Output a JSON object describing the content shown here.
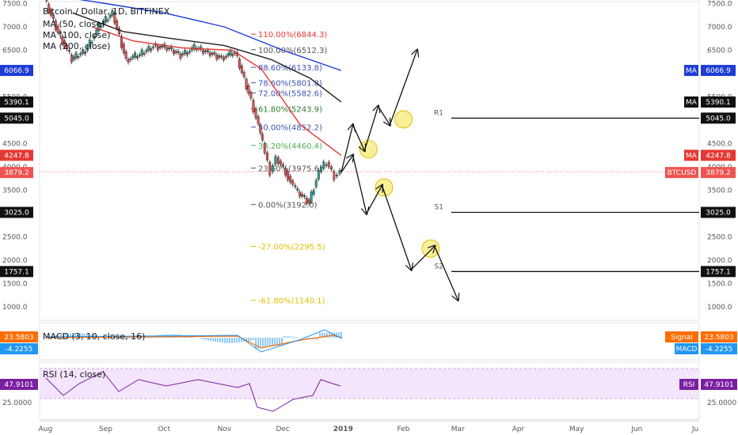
{
  "header": {
    "symbol_title": "Bitcoin / Dollar, 1D, BITFINEX",
    "ma_labels": [
      "MA (50, close)",
      "MA (100, close)",
      "MA (200, close)"
    ]
  },
  "colors": {
    "candle_up": "#26a69a",
    "candle_down": "#ef5350",
    "ma50": "#e53935",
    "ma100": "#212121",
    "ma200": "#1e3cd6",
    "macd_line": "#2196f3",
    "signal_line": "#ff6d00",
    "rsi_line": "#7b1fa2",
    "rsi_band": "#f3e5fb",
    "highlight": "#f7ef9a"
  },
  "chart_data": [
    {
      "type": "candlestick",
      "title": "Bitcoin / Dollar, 1D, BITFINEX",
      "y_ticks": [
        "7500.0",
        "7000.0",
        "6500.0",
        "5500.0",
        "4500.0",
        "4000.0",
        "3500.0",
        "2500.0",
        "2000.0",
        "1500.0",
        "1000.0"
      ],
      "x_ticks": [
        "Aug",
        "Sep",
        "Oct",
        "Nov",
        "Dec",
        "2019",
        "Feb",
        "Mar",
        "Apr",
        "May",
        "Jun",
        "Ju"
      ],
      "close_path": [
        [
          "2018-08-01",
          7600
        ],
        [
          "2018-08-08",
          6900
        ],
        [
          "2018-08-15",
          6300
        ],
        [
          "2018-08-22",
          6500
        ],
        [
          "2018-08-29",
          7000
        ],
        [
          "2018-09-05",
          7300
        ],
        [
          "2018-09-12",
          6300
        ],
        [
          "2018-09-19",
          6400
        ],
        [
          "2018-09-26",
          6600
        ],
        [
          "2018-10-03",
          6550
        ],
        [
          "2018-10-10",
          6400
        ],
        [
          "2018-10-17",
          6550
        ],
        [
          "2018-10-24",
          6450
        ],
        [
          "2018-10-31",
          6350
        ],
        [
          "2018-11-07",
          6450
        ],
        [
          "2018-11-14",
          5600
        ],
        [
          "2018-11-19",
          4900
        ],
        [
          "2018-11-21",
          4500
        ],
        [
          "2018-11-25",
          3900
        ],
        [
          "2018-11-28",
          4200
        ],
        [
          "2018-12-03",
          3900
        ],
        [
          "2018-12-08",
          3500
        ],
        [
          "2018-12-15",
          3250
        ],
        [
          "2018-12-20",
          3900
        ],
        [
          "2018-12-24",
          4100
        ],
        [
          "2018-12-28",
          3800
        ],
        [
          "2018-12-31",
          3900
        ]
      ],
      "moving_averages": [
        {
          "name": "MA (50, close)",
          "last": "4247.8",
          "points": [
            [
              "2018-08-25",
              7000
            ],
            [
              "2018-09-15",
              6700
            ],
            [
              "2018-10-10",
              6550
            ],
            [
              "2018-11-05",
              6500
            ],
            [
              "2018-11-20",
              6100
            ],
            [
              "2018-12-10",
              4900
            ],
            [
              "2018-12-31",
              4247.8
            ]
          ]
        },
        {
          "name": "MA (100, close)",
          "last": "5390.1",
          "points": [
            [
              "2018-08-15",
              7300
            ],
            [
              "2018-09-10",
              6900
            ],
            [
              "2018-10-05",
              6750
            ],
            [
              "2018-11-01",
              6600
            ],
            [
              "2018-11-25",
              6300
            ],
            [
              "2018-12-15",
              5900
            ],
            [
              "2018-12-31",
              5390.1
            ]
          ]
        },
        {
          "name": "MA (200, close)",
          "last": "6066.9",
          "points": [
            [
              "2018-08-01",
              7700
            ],
            [
              "2018-09-01",
              7500
            ],
            [
              "2018-10-01",
              7300
            ],
            [
              "2018-11-01",
              7000
            ],
            [
              "2018-12-01",
              6500
            ],
            [
              "2018-12-31",
              6066.9
            ]
          ]
        }
      ],
      "fib_levels": [
        {
          "label": "110.00%(6844.3)",
          "value": 6844.3,
          "color": "#e53935"
        },
        {
          "label": "100.00%(6512.3)",
          "value": 6512.3,
          "color": "#555555"
        },
        {
          "label": "88.60%(6133.8)",
          "value": 6133.8,
          "color": "#3f51b5"
        },
        {
          "label": "78.60%(5801.8)",
          "value": 5801.8,
          "color": "#3f51b5"
        },
        {
          "label": "72.00%(5582.6)",
          "value": 5582.6,
          "color": "#3f51b5"
        },
        {
          "label": "61.80%(5243.9)",
          "value": 5243.9,
          "color": "#2e7d32"
        },
        {
          "label": "50.00%(4852.2)",
          "value": 4852.2,
          "color": "#3f51b5"
        },
        {
          "label": "38.20%(4460.4)",
          "value": 4460.4,
          "color": "#4caf50"
        },
        {
          "label": "23.60%(3975.6)",
          "value": 3975.6,
          "color": "#555555"
        },
        {
          "label": "0.00%(3192.0)",
          "value": 3192.0,
          "color": "#555555"
        },
        {
          "label": "-27.00%(2295.5)",
          "value": 2295.5,
          "color": "#e0c000"
        },
        {
          "label": "-61.80%(1140.1)",
          "value": 1140.1,
          "color": "#e0c000"
        }
      ],
      "levels": [
        {
          "label": "R1",
          "value": 5045.0
        },
        {
          "label": "S1",
          "value": 3025.0
        },
        {
          "label": "S2",
          "value": 1757.1
        }
      ],
      "price_tags": [
        {
          "text": "6066.9",
          "value": 6066.9,
          "color": "#1e3cd6",
          "name": "MA"
        },
        {
          "text": "5390.1",
          "value": 5390.1,
          "color": "#111111",
          "name": "MA"
        },
        {
          "text": "5045.0",
          "value": 5045.0,
          "color": "#111111",
          "name": ""
        },
        {
          "text": "4247.8",
          "value": 4247.8,
          "color": "#e53935",
          "name": "MA"
        },
        {
          "text": "3879.2",
          "value": 3879.2,
          "color": "#ef5350",
          "name": "BTCUSD"
        },
        {
          "text": "3025.0",
          "value": 3025.0,
          "color": "#111111",
          "name": ""
        },
        {
          "text": "1757.1",
          "value": 1757.1,
          "color": "#111111",
          "name": ""
        }
      ],
      "scenario_up": [
        [
          "2018-12-31",
          3879.2
        ],
        [
          "2019-01-06",
          4900
        ],
        [
          "2019-01-12",
          4350
        ],
        [
          "2019-01-19",
          5300
        ],
        [
          "2019-01-25",
          4900
        ],
        [
          "2019-02-08",
          6500
        ]
      ],
      "scenario_down": [
        [
          "2018-12-31",
          3879.2
        ],
        [
          "2019-01-06",
          4250
        ],
        [
          "2019-01-13",
          3000
        ],
        [
          "2019-01-21",
          3600
        ],
        [
          "2019-02-05",
          1800
        ],
        [
          "2019-02-17",
          2300
        ],
        [
          "2019-03-01",
          1150
        ]
      ],
      "highlight_points": [
        [
          "2019-01-14",
          4380
        ],
        [
          "2019-01-22",
          3560
        ],
        [
          "2019-02-01",
          5020
        ],
        [
          "2019-02-15",
          2250
        ]
      ]
    },
    {
      "type": "line",
      "title": "MACD (3, 10, close, 16)",
      "series": [
        {
          "name": "Signal",
          "last": "23.5803"
        },
        {
          "name": "MACD",
          "last": "-4.2255"
        }
      ]
    },
    {
      "type": "line",
      "title": "RSI (14, close)",
      "y_ticks": [
        "25.0000"
      ],
      "series": [
        {
          "name": "RSI",
          "last": "47.9101"
        }
      ]
    }
  ]
}
